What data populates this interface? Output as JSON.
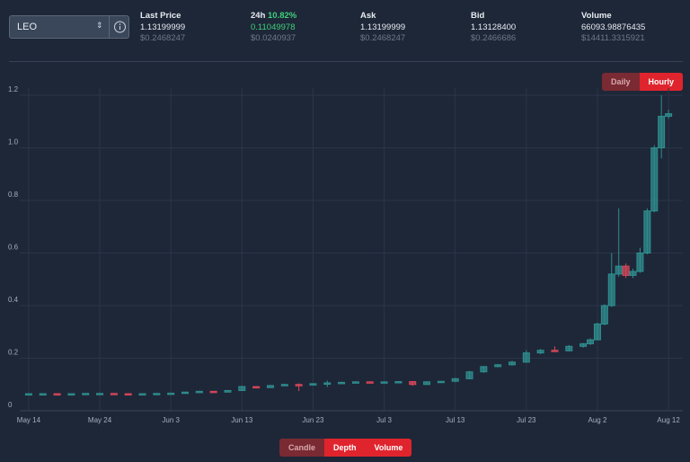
{
  "market": {
    "symbol": "LEO",
    "stats": [
      {
        "label": "Last Price",
        "value": "1.13199999",
        "usd": "$0.2468247"
      },
      {
        "label": "24h",
        "change": "10.82%",
        "value": "0.11049978",
        "usd": "$0.0240937"
      },
      {
        "label": "Ask",
        "value": "1.13199999",
        "usd": "$0.2468247"
      },
      {
        "label": "Bid",
        "value": "1.13128400",
        "usd": "$0.2466686"
      },
      {
        "label": "Volume",
        "value": "66093.98876435",
        "usd": "$14411.3315921"
      }
    ],
    "interval_tabs": [
      "Daily",
      "Hourly"
    ],
    "view_tabs": [
      "Candle",
      "Depth",
      "Volume"
    ]
  },
  "chart_data": {
    "type": "candlestick",
    "up_color": "#2f8f8f",
    "down_color": "#d9475a",
    "grid": true,
    "xlim": [
      "May 13",
      "Aug 13"
    ],
    "xticks": [
      "May 14",
      "May 24",
      "Jun 3",
      "Jun 13",
      "Jun 23",
      "Jul 3",
      "Jul 13",
      "Jul 23",
      "Aug 2",
      "Aug 12"
    ],
    "ylim": [
      0,
      1.2
    ],
    "yticks": [
      0,
      0.2,
      0.4,
      0.6,
      0.8,
      {
        "value": 1,
        "label": "1.0"
      },
      1.2
    ],
    "x": [
      "May 14",
      "May 16",
      "May 18",
      "May 20",
      "May 22",
      "May 24",
      "May 26",
      "May 28",
      "May 30",
      "Jun 1",
      "Jun 3",
      "Jun 5",
      "Jun 7",
      "Jun 9",
      "Jun 11",
      "Jun 13",
      "Jun 15",
      "Jun 17",
      "Jun 19",
      "Jun 21",
      "Jun 23",
      "Jun 25",
      "Jun 27",
      "Jun 29",
      "Jul 1",
      "Jul 3",
      "Jul 5",
      "Jul 7",
      "Jul 9",
      "Jul 11",
      "Jul 13",
      "Jul 15",
      "Jul 17",
      "Jul 19",
      "Jul 21",
      "Jul 23",
      "Jul 25",
      "Jul 27",
      "Jul 29",
      "Jul 31",
      "Aug 1",
      "Aug 2",
      "Aug 3",
      "Aug 4",
      "Aug 5",
      "Aug 6",
      "Aug 7",
      "Aug 8",
      "Aug 9",
      "Aug 10",
      "Aug 11",
      "Aug 12"
    ],
    "open": [
      0.065,
      0.065,
      0.065,
      0.064,
      0.065,
      0.066,
      0.066,
      0.065,
      0.064,
      0.065,
      0.066,
      0.067,
      0.071,
      0.074,
      0.071,
      0.077,
      0.092,
      0.088,
      0.096,
      0.1,
      0.098,
      0.103,
      0.106,
      0.108,
      0.11,
      0.109,
      0.11,
      0.111,
      0.1,
      0.11,
      0.112,
      0.122,
      0.148,
      0.168,
      0.175,
      0.185,
      0.22,
      0.23,
      0.228,
      0.245,
      0.255,
      0.27,
      0.33,
      0.4,
      0.52,
      0.55,
      0.515,
      0.53,
      0.6,
      0.76,
      1.0,
      1.12
    ],
    "high": [
      0.066,
      0.066,
      0.066,
      0.066,
      0.067,
      0.067,
      0.067,
      0.066,
      0.066,
      0.067,
      0.068,
      0.072,
      0.076,
      0.075,
      0.078,
      0.095,
      0.094,
      0.098,
      0.102,
      0.104,
      0.105,
      0.115,
      0.11,
      0.112,
      0.112,
      0.112,
      0.112,
      0.112,
      0.112,
      0.113,
      0.125,
      0.152,
      0.17,
      0.178,
      0.19,
      0.23,
      0.235,
      0.245,
      0.25,
      0.258,
      0.275,
      0.335,
      0.405,
      0.6,
      0.77,
      0.56,
      0.54,
      0.62,
      0.77,
      1.01,
      1.2,
      1.145
    ],
    "low": [
      0.064,
      0.064,
      0.063,
      0.063,
      0.064,
      0.065,
      0.064,
      0.063,
      0.063,
      0.064,
      0.065,
      0.066,
      0.07,
      0.069,
      0.07,
      0.076,
      0.085,
      0.087,
      0.094,
      0.075,
      0.096,
      0.09,
      0.103,
      0.105,
      0.107,
      0.107,
      0.108,
      0.095,
      0.099,
      0.108,
      0.11,
      0.12,
      0.145,
      0.165,
      0.172,
      0.183,
      0.215,
      0.225,
      0.226,
      0.24,
      0.25,
      0.268,
      0.325,
      0.395,
      0.51,
      0.505,
      0.505,
      0.525,
      0.595,
      0.755,
      0.96,
      1.11
    ],
    "close": [
      0.065,
      0.065,
      0.064,
      0.065,
      0.066,
      0.066,
      0.065,
      0.064,
      0.065,
      0.066,
      0.067,
      0.071,
      0.074,
      0.071,
      0.077,
      0.092,
      0.088,
      0.096,
      0.1,
      0.098,
      0.103,
      0.106,
      0.108,
      0.11,
      0.109,
      0.11,
      0.111,
      0.1,
      0.11,
      0.112,
      0.122,
      0.148,
      0.168,
      0.175,
      0.185,
      0.22,
      0.23,
      0.228,
      0.245,
      0.255,
      0.27,
      0.33,
      0.4,
      0.52,
      0.55,
      0.515,
      0.53,
      0.6,
      0.76,
      1.0,
      1.12,
      1.13
    ]
  }
}
